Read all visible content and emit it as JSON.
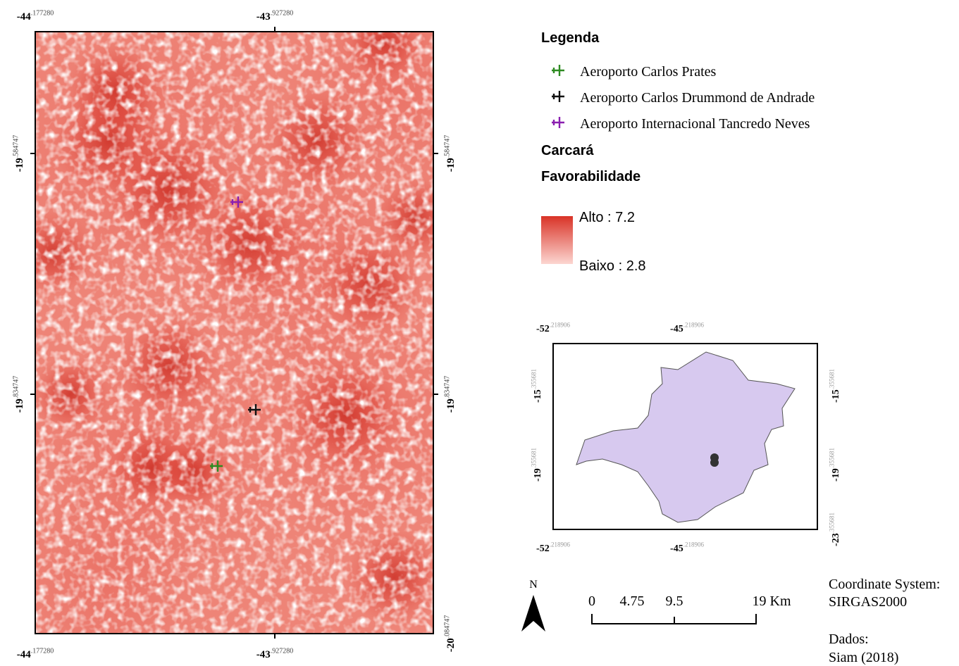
{
  "main_map": {
    "top": [
      {
        "degrees": "-44",
        "decimals": ".177280"
      },
      {
        "degrees": "-43",
        "decimals": ".927280"
      }
    ],
    "bottom": [
      {
        "degrees": "-44",
        "decimals": ".177280"
      },
      {
        "degrees": "-43",
        "decimals": ".927280"
      }
    ],
    "left": [
      {
        "degrees": "-19",
        "decimals": ".584747"
      },
      {
        "degrees": "-19",
        "decimals": ".834747"
      }
    ],
    "right": [
      {
        "degrees": "-19",
        "decimals": ".584747"
      },
      {
        "degrees": "-19",
        "decimals": ".834747"
      },
      {
        "degrees": "-20",
        "decimals": ".084747"
      }
    ]
  },
  "legend": {
    "title": "Legenda",
    "items": [
      {
        "label": "Aeroporto Carlos Prates",
        "color": "#2e8b22"
      },
      {
        "label": "Aeroporto Carlos Drummond de Andrade",
        "color": "#111111"
      },
      {
        "label": "Aeroporto Internacional Tancredo Neves",
        "color": "#8a1fb0"
      }
    ],
    "layer": "Carcará",
    "field": "Favorabilidade",
    "high": "Alto : 7.2",
    "low": "Baixo : 2.8"
  },
  "inset_map": {
    "top": [
      {
        "degrees": "-52",
        "decimals": ".218906"
      },
      {
        "degrees": "-45",
        "decimals": ".218906"
      }
    ],
    "bottom": [
      {
        "degrees": "-52",
        "decimals": ".218906"
      },
      {
        "degrees": "-45",
        "decimals": ".218906"
      }
    ],
    "left": [
      {
        "degrees": "-15",
        "decimals": ".355681"
      },
      {
        "degrees": "-19",
        "decimals": ".355681"
      }
    ],
    "right": [
      {
        "degrees": "-15",
        "decimals": ".355681"
      },
      {
        "degrees": "-19",
        "decimals": ".355681"
      },
      {
        "degrees": "-23",
        "decimals": ".355681"
      }
    ]
  },
  "north": "N",
  "scale": {
    "labels": [
      "0",
      "4.75",
      "9.5",
      "19 Km"
    ]
  },
  "coordinate_system": {
    "label": "Coordinate System:",
    "value": "SIRGAS2000"
  },
  "source": {
    "label": "Dados:",
    "value": "Siam (2018)"
  }
}
